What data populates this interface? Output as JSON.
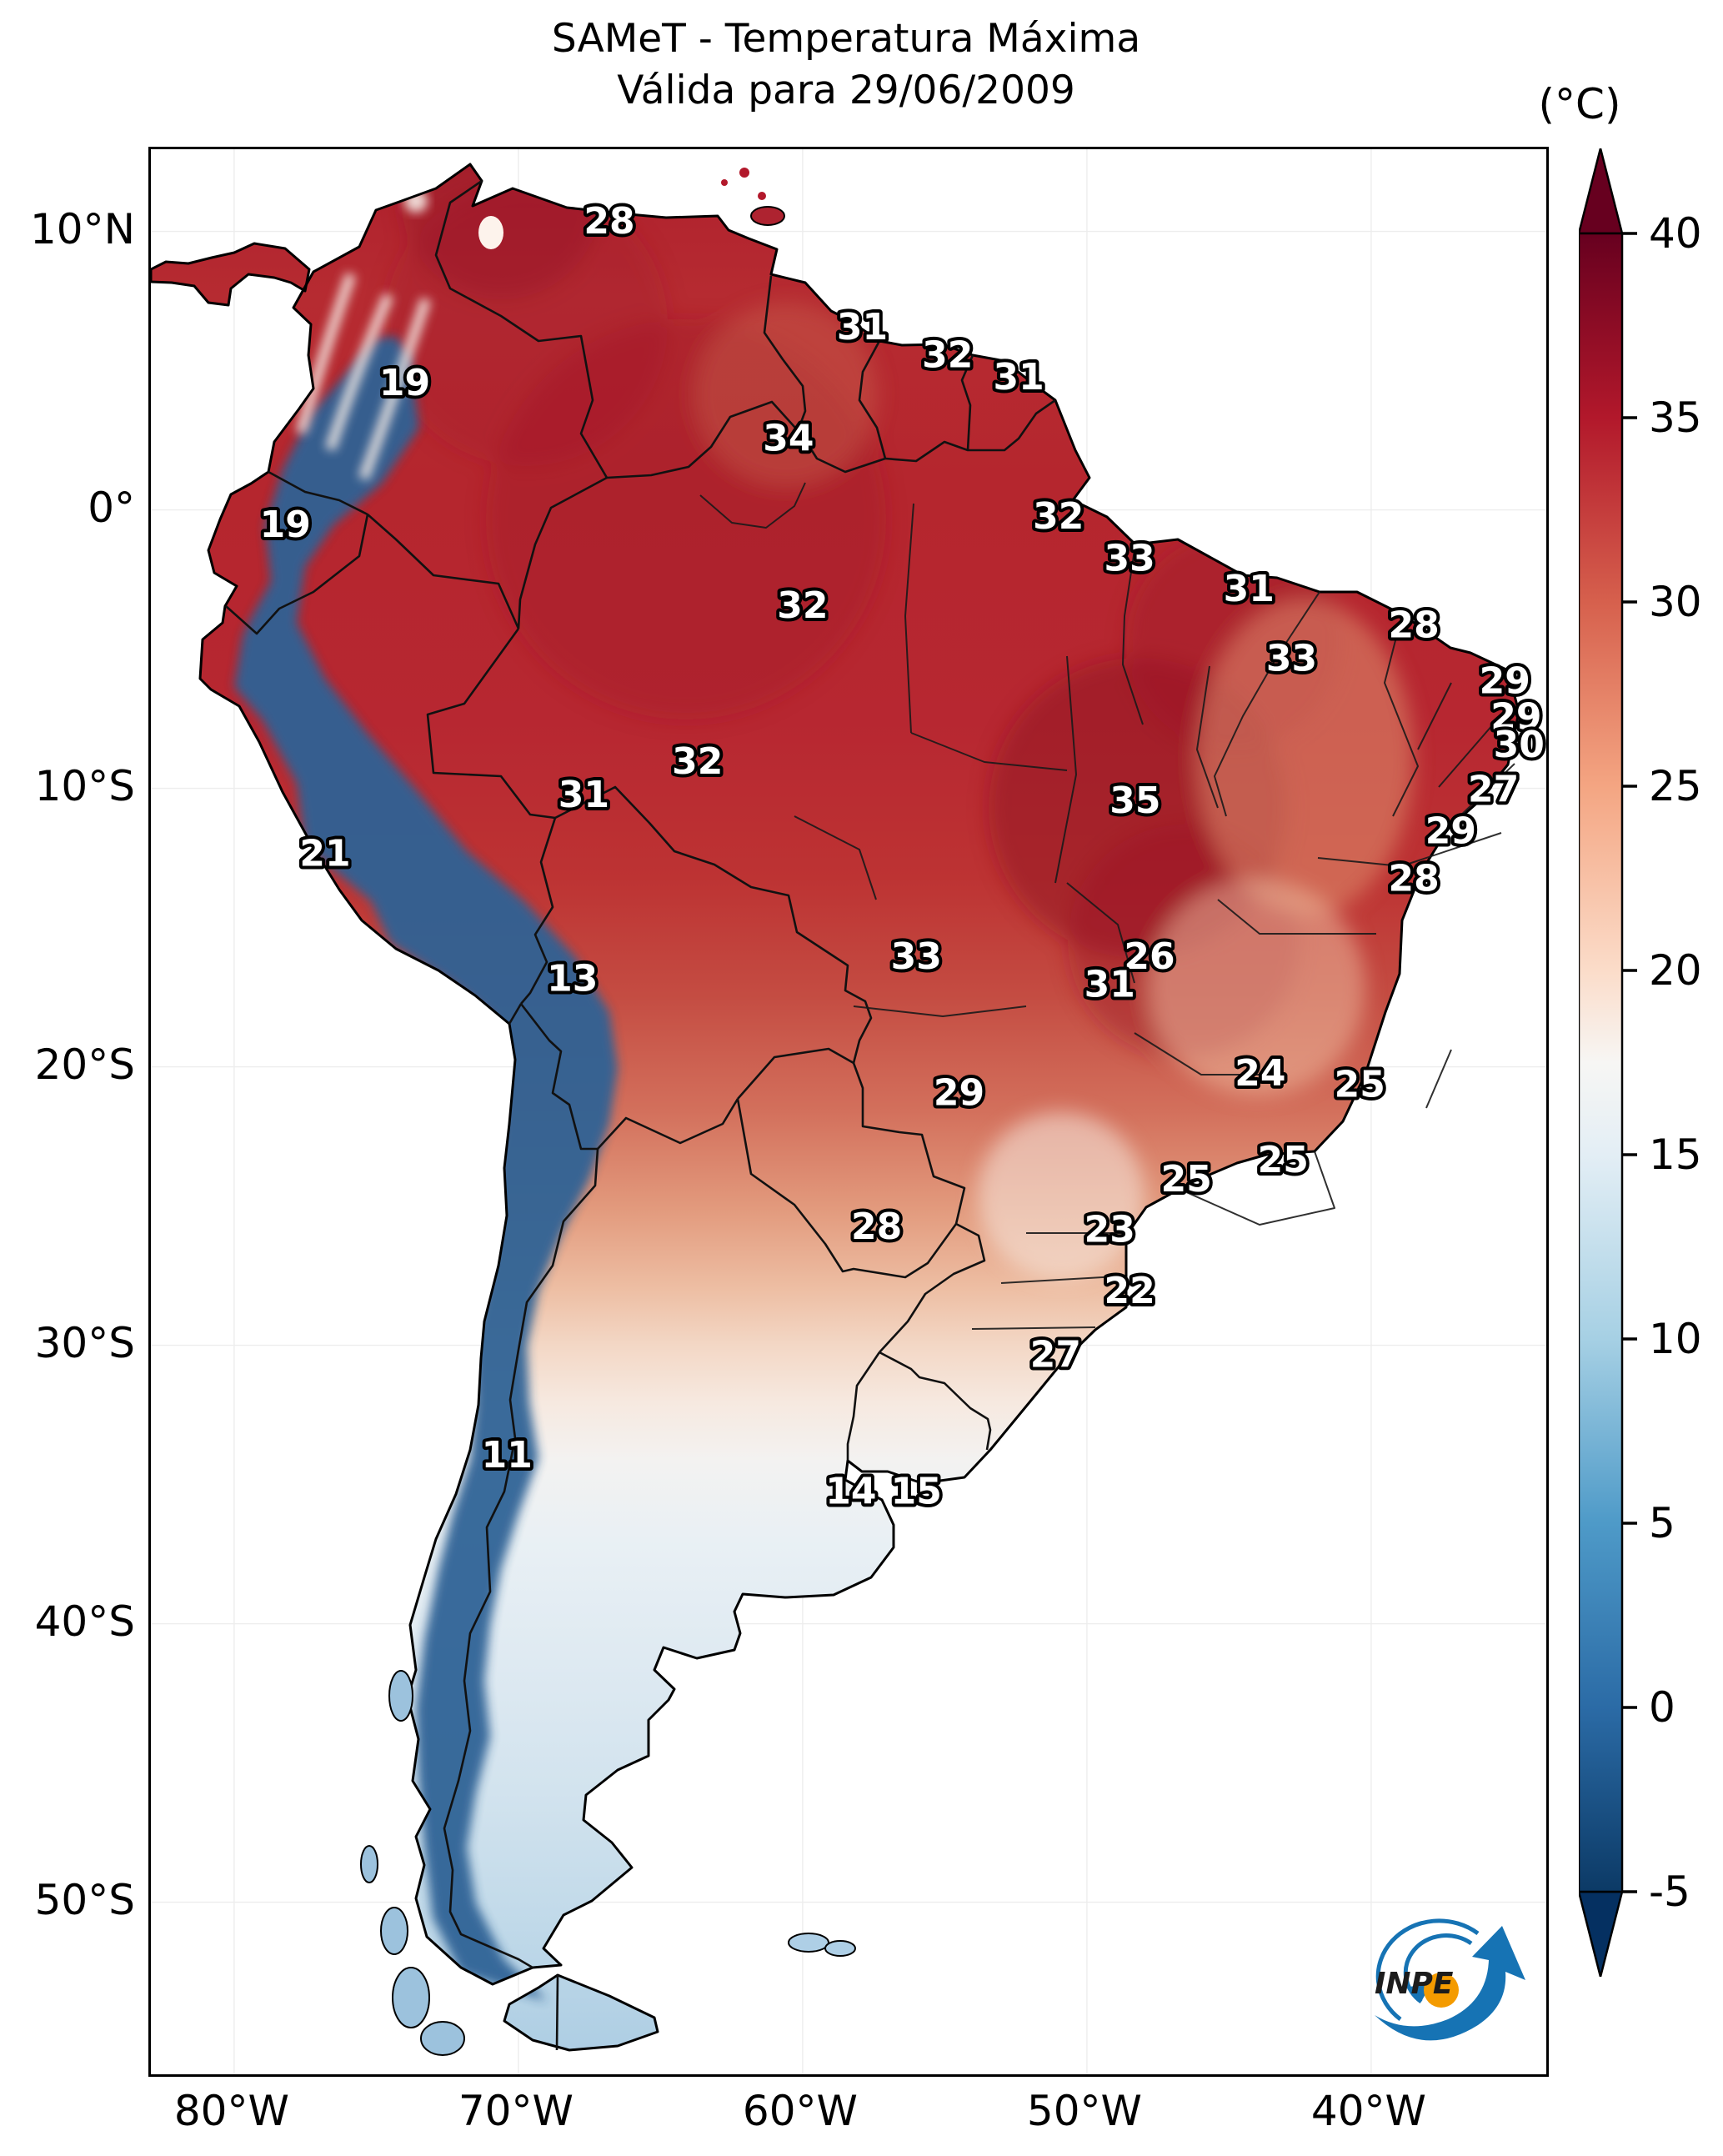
{
  "title": {
    "line1": "SAMeT - Temperatura Máxima",
    "line2": "Válida para 29/06/2009"
  },
  "colorbar": {
    "unit_label": "(°C)",
    "vmin": -5,
    "vmax": 40,
    "tick_values": [
      40,
      35,
      30,
      25,
      20,
      15,
      10,
      5,
      0,
      -5
    ],
    "extend": "both",
    "colormap_name": "RdBu_r",
    "stops": [
      {
        "value": 40,
        "color": "#67001f"
      },
      {
        "value": 35,
        "color": "#b2182b"
      },
      {
        "value": 30,
        "color": "#d6604d"
      },
      {
        "value": 25,
        "color": "#f4a582"
      },
      {
        "value": 20,
        "color": "#fbdcc9"
      },
      {
        "value": 17.5,
        "color": "#f7f6f4"
      },
      {
        "value": 15,
        "color": "#e3eef5"
      },
      {
        "value": 10,
        "color": "#a6d0e4"
      },
      {
        "value": 5,
        "color": "#4e9ac8"
      },
      {
        "value": 0,
        "color": "#2b6ba6"
      },
      {
        "value": -5,
        "color": "#0c3a66"
      }
    ],
    "arrow_top_color": "#67001f",
    "arrow_bottom_color": "#053061"
  },
  "axes": {
    "lon_min": -82.93,
    "lon_max": -33.84,
    "lat_min": -56.18,
    "lat_max": 12.95,
    "lon_ticks": [
      {
        "label": "80°W",
        "lon": -80
      },
      {
        "label": "70°W",
        "lon": -70
      },
      {
        "label": "60°W",
        "lon": -60
      },
      {
        "label": "50°W",
        "lon": -50
      },
      {
        "label": "40°W",
        "lon": -40
      }
    ],
    "lat_ticks": [
      {
        "label": "10°N",
        "lat": 10
      },
      {
        "label": "0°",
        "lat": 0
      },
      {
        "label": "10°S",
        "lat": -10
      },
      {
        "label": "20°S",
        "lat": -20
      },
      {
        "label": "30°S",
        "lat": -30
      },
      {
        "label": "40°S",
        "lat": -40
      },
      {
        "label": "50°S",
        "lat": -50
      }
    ]
  },
  "chart_data": {
    "type": "heatmap",
    "title": "SAMeT - Temperatura Máxima",
    "subtitle": "Válida para 29/06/2009",
    "unit": "°C",
    "value_range": [
      -5,
      40
    ],
    "region": "South America",
    "station_values": [
      {
        "value": 28,
        "lon": -66.8,
        "lat": 10.4
      },
      {
        "value": 31,
        "lon": -57.9,
        "lat": 6.6
      },
      {
        "value": 32,
        "lon": -54.9,
        "lat": 5.6
      },
      {
        "value": 31,
        "lon": -52.4,
        "lat": 4.8
      },
      {
        "value": 34,
        "lon": -60.5,
        "lat": 2.6
      },
      {
        "value": 19,
        "lon": -74.0,
        "lat": 4.6
      },
      {
        "value": 19,
        "lon": -78.2,
        "lat": -0.5
      },
      {
        "value": 32,
        "lon": -51.0,
        "lat": -0.2
      },
      {
        "value": 33,
        "lon": -48.5,
        "lat": -1.7
      },
      {
        "value": 31,
        "lon": -44.3,
        "lat": -2.8
      },
      {
        "value": 28,
        "lon": -38.5,
        "lat": -4.1
      },
      {
        "value": 33,
        "lon": -42.8,
        "lat": -5.3
      },
      {
        "value": 29,
        "lon": -35.3,
        "lat": -6.1
      },
      {
        "value": 29,
        "lon": -34.9,
        "lat": -7.4
      },
      {
        "value": 30,
        "lon": -34.8,
        "lat": -8.4
      },
      {
        "value": 27,
        "lon": -35.7,
        "lat": -10.0
      },
      {
        "value": 29,
        "lon": -37.2,
        "lat": -11.5
      },
      {
        "value": 28,
        "lon": -38.5,
        "lat": -13.2
      },
      {
        "value": 32,
        "lon": -60.0,
        "lat": -3.4
      },
      {
        "value": 32,
        "lon": -63.7,
        "lat": -9.0
      },
      {
        "value": 31,
        "lon": -67.7,
        "lat": -10.2
      },
      {
        "value": 35,
        "lon": -48.3,
        "lat": -10.4
      },
      {
        "value": 21,
        "lon": -76.8,
        "lat": -12.3
      },
      {
        "value": 13,
        "lon": -68.1,
        "lat": -16.8
      },
      {
        "value": 33,
        "lon": -56.0,
        "lat": -16.0
      },
      {
        "value": 26,
        "lon": -47.8,
        "lat": -16.0
      },
      {
        "value": 31,
        "lon": -49.2,
        "lat": -17.0
      },
      {
        "value": 29,
        "lon": -54.5,
        "lat": -20.9
      },
      {
        "value": 24,
        "lon": -43.9,
        "lat": -20.2
      },
      {
        "value": 25,
        "lon": -40.4,
        "lat": -20.6
      },
      {
        "value": 25,
        "lon": -43.1,
        "lat": -23.3
      },
      {
        "value": 25,
        "lon": -46.5,
        "lat": -24.0
      },
      {
        "value": 28,
        "lon": -57.4,
        "lat": -25.7
      },
      {
        "value": 23,
        "lon": -49.2,
        "lat": -25.8
      },
      {
        "value": 22,
        "lon": -48.5,
        "lat": -28.0
      },
      {
        "value": 27,
        "lon": -51.1,
        "lat": -30.3
      },
      {
        "value": 11,
        "lon": -70.4,
        "lat": -33.9
      },
      {
        "value": 14,
        "lon": -58.3,
        "lat": -35.2
      },
      {
        "value": 15,
        "lon": -56.0,
        "lat": -35.2
      }
    ]
  },
  "logo": {
    "name": "INPE",
    "text": "INPE",
    "blue": "#1673b4",
    "orange": "#f49b00"
  }
}
